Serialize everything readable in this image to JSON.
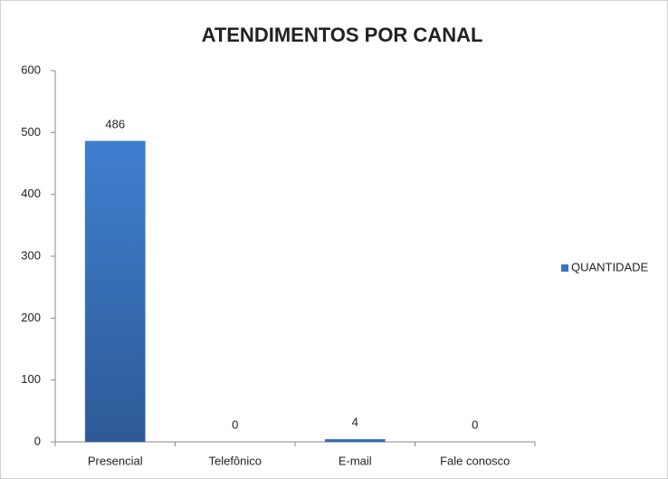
{
  "chart_data": {
    "type": "bar",
    "title": "ATENDIMENTOS POR CANAL",
    "categories": [
      "Presencial",
      "Telefônico",
      "E-mail",
      "Fale conosco"
    ],
    "series": [
      {
        "name": "QUANTIDADE",
        "color": "#3a72bf",
        "values": [
          486,
          0,
          4,
          0
        ]
      }
    ],
    "ylim": [
      0,
      600
    ],
    "yticks": [
      0,
      100,
      200,
      300,
      400,
      500,
      600
    ],
    "grid": false,
    "legend": "right"
  }
}
